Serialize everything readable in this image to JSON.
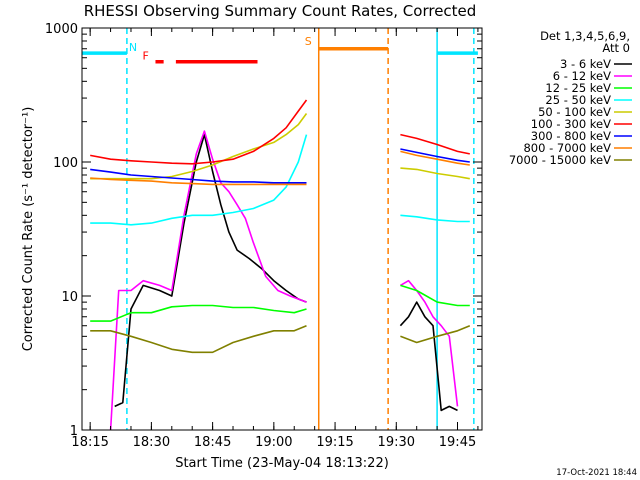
{
  "chart_data": {
    "type": "line",
    "title": "RHESSI Observing Summary Count Rates, Corrected",
    "xlabel": "Start Time (23-May-04 18:13:22)",
    "ylabel": "Corrected Count Rate (s⁻¹ detector⁻¹)",
    "xlim": [
      "18:13",
      "19:51"
    ],
    "ylim": [
      1,
      1000
    ],
    "yscale": "log",
    "xticks": [
      "18:15",
      "18:30",
      "18:45",
      "19:00",
      "19:15",
      "19:30",
      "19:45"
    ],
    "yticks": [
      "1",
      "10",
      "100",
      "1000"
    ],
    "legend": {
      "placement": "right",
      "header": [
        "Det 1,3,4,5,6,9,",
        "Att 0"
      ]
    },
    "flags": [
      {
        "label": "N",
        "color": "#00e5ff",
        "spans": [
          [
            "18:13",
            "18:24"
          ],
          [
            "19:40",
            "19:50"
          ]
        ],
        "level": 650
      },
      {
        "label": "F",
        "color": "#ff0000",
        "spans": [
          [
            "18:31",
            "18:33"
          ],
          [
            "18:36",
            "18:56"
          ]
        ],
        "level": 560
      },
      {
        "label": "S",
        "color": "#ff7f00",
        "spans": [
          [
            "19:11",
            "19:28"
          ]
        ],
        "level": 700
      }
    ],
    "markers": [
      {
        "time": "18:24",
        "color": "#00e5ff",
        "style": "dashed"
      },
      {
        "time": "19:11",
        "color": "#ff7f00",
        "style": "solid"
      },
      {
        "time": "19:28",
        "color": "#ff7f00",
        "style": "dashed"
      },
      {
        "time": "19:40",
        "color": "#00e5ff",
        "style": "solid"
      },
      {
        "time": "19:49",
        "color": "#00e5ff",
        "style": "dashed"
      }
    ],
    "series": [
      {
        "name": "3 - 6 keV",
        "color": "#000000",
        "segments": [
          {
            "x": [
              "18:21",
              "18:23",
              "18:25",
              "18:28",
              "18:32",
              "18:35",
              "18:38",
              "18:41",
              "18:43",
              "18:45",
              "18:47",
              "18:49",
              "18:51",
              "18:54",
              "18:57",
              "19:00",
              "19:03",
              "19:06",
              "19:08"
            ],
            "y": [
              1.5,
              1.6,
              8,
              12,
              11,
              10,
              35,
              100,
              160,
              85,
              48,
              30,
              22,
              19,
              16,
              13,
              11,
              9.5,
              9
            ]
          },
          {
            "x": [
              "19:31",
              "19:33",
              "19:35",
              "19:37",
              "19:39",
              "19:41",
              "19:43",
              "19:45"
            ],
            "y": [
              6,
              7,
              9,
              7,
              6,
              1.4,
              1.5,
              1.4
            ]
          }
        ]
      },
      {
        "name": "6 - 12 keV",
        "color": "#ff00ff",
        "segments": [
          {
            "x": [
              "18:20",
              "18:22",
              "18:25",
              "18:28",
              "18:32",
              "18:35",
              "18:38",
              "18:41",
              "18:43",
              "18:45",
              "18:47",
              "18:49",
              "18:51",
              "18:53",
              "18:55",
              "18:58",
              "19:01",
              "19:04",
              "19:08"
            ],
            "y": [
              1,
              11,
              11,
              13,
              12,
              11,
              40,
              115,
              170,
              105,
              70,
              60,
              48,
              38,
              25,
              14,
              11,
              10,
              9
            ]
          },
          {
            "x": [
              "19:31",
              "19:33",
              "19:35",
              "19:37",
              "19:39",
              "19:41",
              "19:43",
              "19:45"
            ],
            "y": [
              12,
              13,
              11,
              9,
              7,
              6,
              5,
              1.5
            ]
          }
        ]
      },
      {
        "name": "12 - 25 keV",
        "color": "#00ff00",
        "segments": [
          {
            "x": [
              "18:15",
              "18:20",
              "18:25",
              "18:30",
              "18:35",
              "18:40",
              "18:45",
              "18:50",
              "18:55",
              "19:00",
              "19:05",
              "19:08"
            ],
            "y": [
              6.5,
              6.5,
              7.5,
              7.5,
              8.3,
              8.5,
              8.5,
              8.2,
              8.2,
              7.8,
              7.5,
              8
            ]
          },
          {
            "x": [
              "19:31",
              "19:35",
              "19:40",
              "19:45",
              "19:48"
            ],
            "y": [
              12,
              11,
              9,
              8.5,
              8.5
            ]
          }
        ]
      },
      {
        "name": "25 - 50 keV",
        "color": "#00ffff",
        "segments": [
          {
            "x": [
              "18:15",
              "18:20",
              "18:25",
              "18:30",
              "18:35",
              "18:40",
              "18:45",
              "18:50",
              "18:55",
              "19:00",
              "19:03",
              "19:06",
              "19:08"
            ],
            "y": [
              35,
              35,
              34,
              35,
              38,
              40,
              40,
              42,
              45,
              52,
              65,
              100,
              160
            ]
          },
          {
            "x": [
              "19:31",
              "19:35",
              "19:40",
              "19:45",
              "19:48"
            ],
            "y": [
              40,
              39,
              37,
              36,
              36
            ]
          }
        ]
      },
      {
        "name": "50 - 100 keV",
        "color": "#cccc00",
        "segments": [
          {
            "x": [
              "18:15",
              "18:20",
              "18:25",
              "18:30",
              "18:35",
              "18:40",
              "18:45",
              "18:50",
              "18:55",
              "19:00",
              "19:03",
              "19:06",
              "19:08"
            ],
            "y": [
              75,
              75,
              75,
              75,
              78,
              85,
              95,
              110,
              125,
              140,
              160,
              190,
              230
            ]
          },
          {
            "x": [
              "19:31",
              "19:35",
              "19:40",
              "19:45",
              "19:48"
            ],
            "y": [
              90,
              88,
              82,
              78,
              75
            ]
          }
        ]
      },
      {
        "name": "100 - 300 keV",
        "color": "#ff0000",
        "segments": [
          {
            "x": [
              "18:15",
              "18:20",
              "18:25",
              "18:30",
              "18:35",
              "18:40",
              "18:45",
              "18:50",
              "18:55",
              "19:00",
              "19:03",
              "19:06",
              "19:08"
            ],
            "y": [
              112,
              105,
              102,
              100,
              98,
              97,
              100,
              105,
              120,
              150,
              180,
              240,
              290
            ]
          },
          {
            "x": [
              "19:31",
              "19:35",
              "19:40",
              "19:45",
              "19:48"
            ],
            "y": [
              160,
              150,
              135,
              120,
              115
            ]
          }
        ]
      },
      {
        "name": "300 - 800 keV",
        "color": "#0000ff",
        "segments": [
          {
            "x": [
              "18:15",
              "18:20",
              "18:25",
              "18:30",
              "18:35",
              "18:40",
              "18:45",
              "18:50",
              "18:55",
              "19:00",
              "19:05",
              "19:08"
            ],
            "y": [
              88,
              84,
              80,
              78,
              76,
              74,
              72,
              71,
              71,
              70,
              70,
              70
            ]
          },
          {
            "x": [
              "19:31",
              "19:35",
              "19:40",
              "19:45",
              "19:48"
            ],
            "y": [
              125,
              118,
              110,
              103,
              100
            ]
          }
        ]
      },
      {
        "name": "800 - 7000 keV",
        "color": "#ff7f00",
        "segments": [
          {
            "x": [
              "18:15",
              "18:20",
              "18:25",
              "18:30",
              "18:35",
              "18:40",
              "18:45",
              "18:50",
              "18:55",
              "19:00",
              "19:05",
              "19:08"
            ],
            "y": [
              76,
              74,
              73,
              72,
              70,
              69,
              68,
              68,
              68,
              68,
              68,
              68
            ]
          },
          {
            "x": [
              "19:31",
              "19:35",
              "19:40",
              "19:45",
              "19:48"
            ],
            "y": [
              120,
              112,
              105,
              98,
              95
            ]
          }
        ]
      },
      {
        "name": "7000 - 15000 keV",
        "color": "#808000",
        "segments": [
          {
            "x": [
              "18:15",
              "18:20",
              "18:25",
              "18:30",
              "18:35",
              "18:40",
              "18:45",
              "18:50",
              "18:55",
              "19:00",
              "19:05",
              "19:08"
            ],
            "y": [
              5.5,
              5.5,
              5,
              4.5,
              4,
              3.8,
              3.8,
              4.5,
              5,
              5.5,
              5.5,
              6
            ]
          },
          {
            "x": [
              "19:31",
              "19:35",
              "19:40",
              "19:45",
              "19:48"
            ],
            "y": [
              5,
              4.5,
              5,
              5.5,
              6
            ]
          }
        ]
      }
    ]
  },
  "footer": {
    "timestamp": "17-Oct-2021 18:44"
  }
}
